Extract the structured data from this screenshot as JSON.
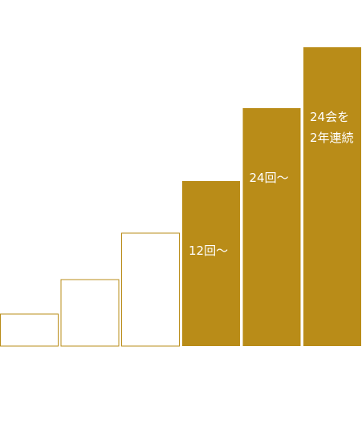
{
  "chart_data": {
    "type": "bar",
    "categories": [
      "",
      "",
      "",
      "12回〜",
      "24回〜",
      "24会を\n2年連続"
    ],
    "values": [
      40,
      83,
      141,
      206,
      297,
      373
    ],
    "highlighted": [
      false,
      false,
      false,
      true,
      true,
      true
    ],
    "title": "",
    "xlabel": "",
    "ylabel": "",
    "ylim": [
      0,
      373
    ],
    "grid": false,
    "legend": "none",
    "colors": {
      "accent": "#b98c18",
      "outline": "#b98c18",
      "plain_fill": "#ffffff",
      "label": "#ffffff"
    }
  }
}
